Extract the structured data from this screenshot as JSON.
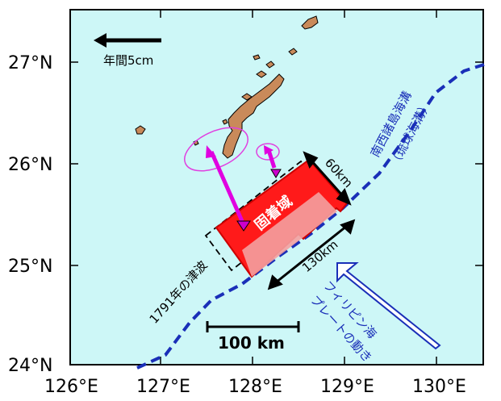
{
  "map": {
    "background_color": "#cdf7f7",
    "land_color": "#c98a5a",
    "trench_color": "#1a2fb8",
    "lat_labels": [
      "27°N",
      "26°N",
      "25°N",
      "24°N"
    ],
    "lon_labels": [
      "126°E",
      "127°E",
      "128°E",
      "129°E",
      "130°E"
    ],
    "velocity_label": "年間5cm",
    "locked_zone_label": "固着域",
    "width_label": "60km",
    "length_label": "130km",
    "tsunami_label": "1791年の津波",
    "trench_label_line1": "南西諸島海溝",
    "trench_label_line2": "（琉球海溝）",
    "plate_motion_line1": "フィリピン海",
    "plate_motion_line2": "プレートの動き",
    "scale_label": "100 km"
  }
}
